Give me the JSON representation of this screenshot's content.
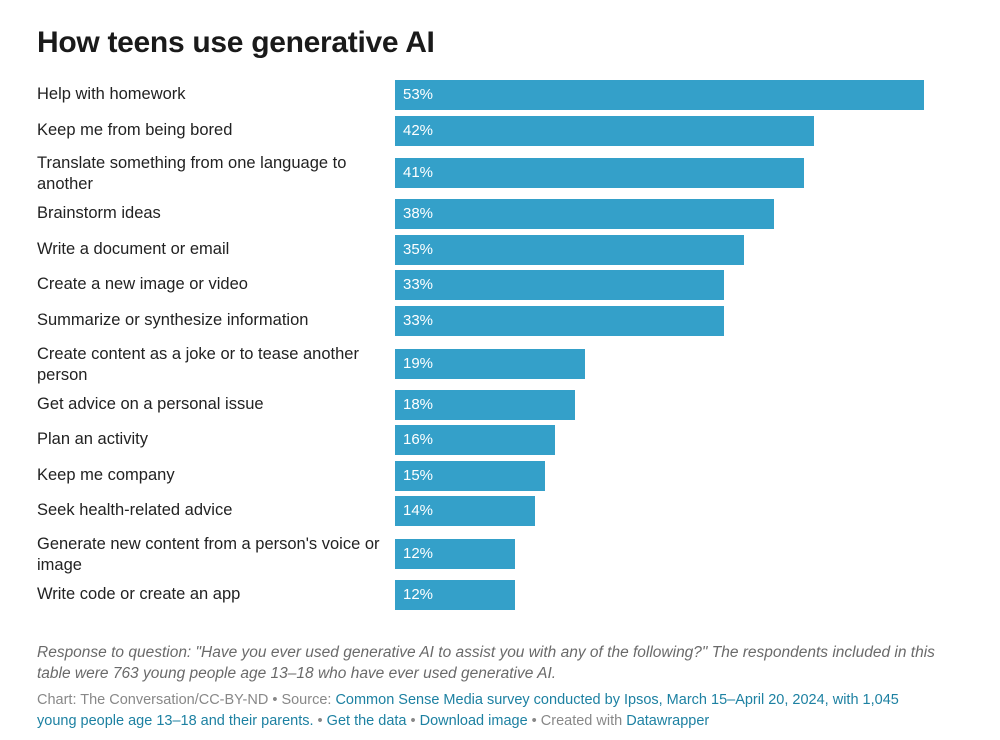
{
  "title": "How teens use generative AI",
  "chart_data": {
    "type": "bar",
    "orientation": "horizontal",
    "categories": [
      "Help with homework",
      "Keep me from being bored",
      "Translate something from one language to another",
      "Brainstorm ideas",
      "Write a document or email",
      "Create a new image or video",
      "Summarize or synthesize information",
      "Create content as a joke or to tease another person",
      "Get advice on a personal issue",
      "Plan an activity",
      "Keep me company",
      "Seek health-related advice",
      "Generate new content from a person's voice or image",
      "Write code or create an app"
    ],
    "values": [
      53,
      42,
      41,
      38,
      35,
      33,
      33,
      19,
      18,
      16,
      15,
      14,
      12,
      12
    ],
    "value_labels": [
      "53%",
      "42%",
      "41%",
      "38%",
      "35%",
      "33%",
      "33%",
      "19%",
      "18%",
      "16%",
      "15%",
      "14%",
      "12%",
      "12%"
    ],
    "unit": "%",
    "xlim": [
      0,
      53
    ],
    "bar_color": "#34a0c9",
    "grid": false,
    "legend": "none"
  },
  "note": "Response to question: \"Have you ever used generative AI to assist you with any of the following?\" The respondents included in this table were 763 young people age 13–18 who have ever used generative AI.",
  "footer": {
    "credit": "Chart: The Conversation/CC-BY-ND",
    "sep": " • ",
    "source_prefix": "Source: ",
    "source_link": "Common Sense Media survey conducted by Ipsos, March 15–April 20, 2024, with 1,045 young people age 13–18 and their parents.",
    "get_data": "Get the data",
    "download": "Download image",
    "created_prefix": "Created with ",
    "created_link": "Datawrapper"
  }
}
